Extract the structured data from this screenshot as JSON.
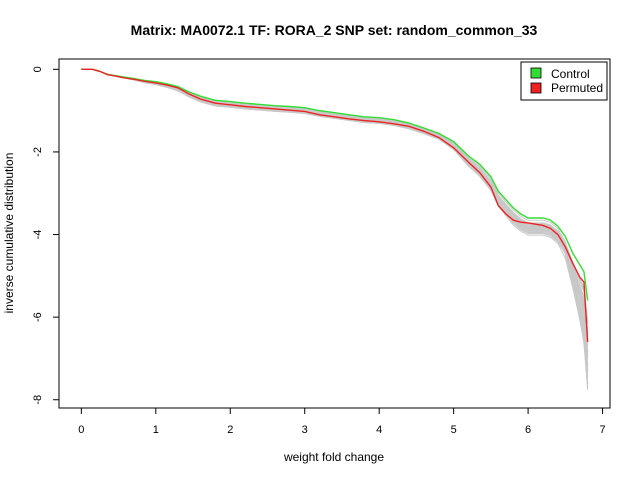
{
  "chart_data": {
    "type": "line",
    "title": "Matrix: MA0072.1 TF: RORA_2 SNP set: random_common_33",
    "xlabel": "weight fold change",
    "ylabel": "inverse cumulative distribution",
    "xlim": [
      -0.3,
      7.1
    ],
    "ylim": [
      -8.2,
      0.25
    ],
    "xticks": [
      0,
      1,
      2,
      3,
      4,
      5,
      6,
      7
    ],
    "yticks": [
      0,
      -2,
      -4,
      -6,
      -8
    ],
    "legend": {
      "position": "top-right",
      "entries": [
        {
          "label": "Control",
          "color": "#33dd33"
        },
        {
          "label": "Permuted",
          "color": "#ee2222"
        }
      ]
    },
    "background_series_color": "#c8c8c8",
    "x": [
      0,
      0.15,
      0.25,
      0.35,
      0.45,
      0.55,
      0.7,
      0.85,
      1.0,
      1.15,
      1.3,
      1.45,
      1.6,
      1.8,
      2.0,
      2.2,
      2.4,
      2.6,
      2.8,
      3.0,
      3.2,
      3.4,
      3.6,
      3.8,
      4.0,
      4.2,
      4.4,
      4.6,
      4.8,
      5.0,
      5.2,
      5.35,
      5.5,
      5.6,
      5.7,
      5.8,
      5.9,
      6.0,
      6.1,
      6.2,
      6.3,
      6.4,
      6.5,
      6.6,
      6.7,
      6.75,
      6.8
    ],
    "series": [
      {
        "name": "Control",
        "color": "#33dd33",
        "values": [
          0,
          0,
          -0.05,
          -0.12,
          -0.15,
          -0.18,
          -0.22,
          -0.27,
          -0.3,
          -0.35,
          -0.42,
          -0.55,
          -0.65,
          -0.75,
          -0.78,
          -0.82,
          -0.85,
          -0.88,
          -0.9,
          -0.93,
          -1.0,
          -1.05,
          -1.1,
          -1.15,
          -1.17,
          -1.22,
          -1.3,
          -1.42,
          -1.55,
          -1.75,
          -2.1,
          -2.3,
          -2.6,
          -2.95,
          -3.15,
          -3.35,
          -3.5,
          -3.6,
          -3.6,
          -3.6,
          -3.65,
          -3.8,
          -4.05,
          -4.45,
          -4.75,
          -4.9,
          -5.6
        ]
      },
      {
        "name": "Permuted",
        "color": "#ee2222",
        "values": [
          0,
          0,
          -0.05,
          -0.13,
          -0.16,
          -0.2,
          -0.24,
          -0.29,
          -0.33,
          -0.38,
          -0.45,
          -0.6,
          -0.72,
          -0.82,
          -0.86,
          -0.9,
          -0.93,
          -0.96,
          -0.99,
          -1.02,
          -1.1,
          -1.15,
          -1.2,
          -1.24,
          -1.27,
          -1.32,
          -1.38,
          -1.5,
          -1.65,
          -1.9,
          -2.25,
          -2.5,
          -2.85,
          -3.3,
          -3.5,
          -3.65,
          -3.7,
          -3.72,
          -3.75,
          -3.78,
          -3.85,
          -4.0,
          -4.3,
          -4.7,
          -5.05,
          -5.15,
          -6.6
        ]
      }
    ]
  }
}
